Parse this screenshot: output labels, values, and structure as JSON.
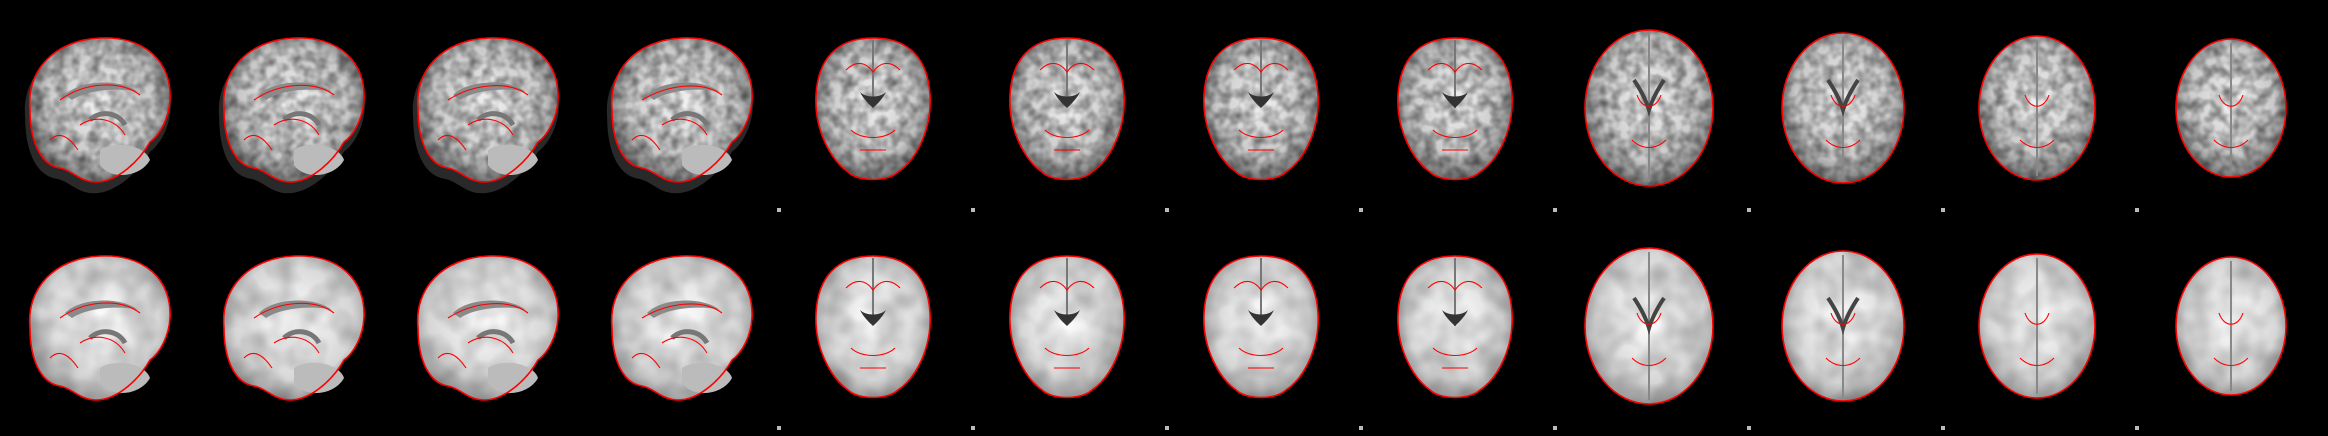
{
  "figure": {
    "description": "",
    "outline_color": "#ff0000",
    "background_color": "#000000",
    "rows": [
      {
        "id": "functional",
        "tiles": [
          {
            "view": "sagittal",
            "tex": "noisy"
          },
          {
            "view": "sagittal",
            "tex": "noisy"
          },
          {
            "view": "sagittal",
            "tex": "noisy"
          },
          {
            "view": "sagittal",
            "tex": "noisy"
          },
          {
            "view": "coronal",
            "tex": "noisy"
          },
          {
            "view": "coronal",
            "tex": "noisy"
          },
          {
            "view": "coronal",
            "tex": "noisy"
          },
          {
            "view": "coronal",
            "tex": "noisy"
          },
          {
            "view": "axial",
            "tex": "noisy"
          },
          {
            "view": "axial",
            "tex": "noisy"
          },
          {
            "view": "axial",
            "tex": "noisy"
          },
          {
            "view": "axial",
            "tex": "noisy"
          }
        ]
      },
      {
        "id": "anatomical",
        "tiles": [
          {
            "view": "sagittal",
            "tex": "smooth"
          },
          {
            "view": "sagittal",
            "tex": "smooth"
          },
          {
            "view": "sagittal",
            "tex": "smooth"
          },
          {
            "view": "sagittal",
            "tex": "smooth"
          },
          {
            "view": "coronal",
            "tex": "smooth"
          },
          {
            "view": "coronal",
            "tex": "smooth"
          },
          {
            "view": "coronal",
            "tex": "smooth"
          },
          {
            "view": "coronal",
            "tex": "smooth"
          },
          {
            "view": "axial",
            "tex": "smooth"
          },
          {
            "view": "axial",
            "tex": "smooth"
          },
          {
            "view": "axial",
            "tex": "smooth"
          },
          {
            "view": "axial",
            "tex": "smooth"
          }
        ]
      }
    ]
  }
}
